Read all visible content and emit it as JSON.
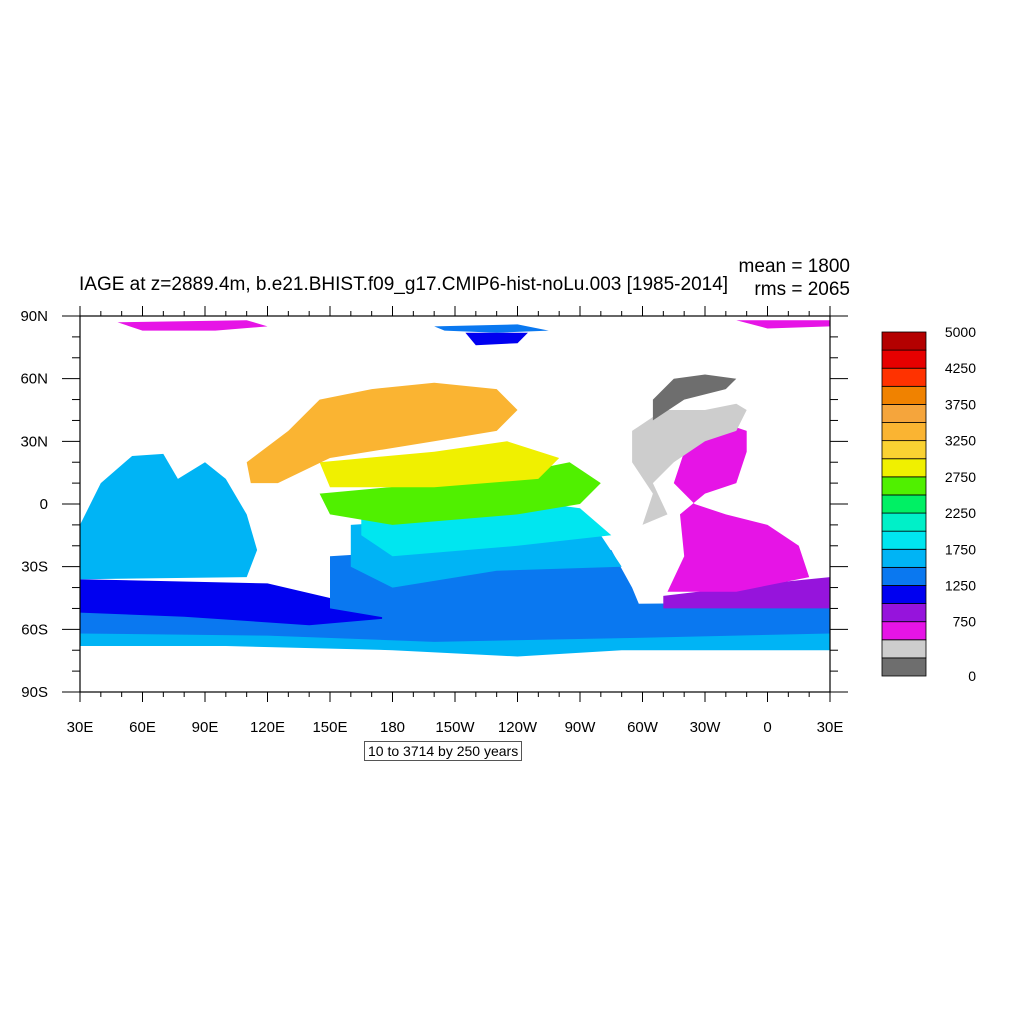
{
  "title": "IAGE at z=2889.4m, b.e21.BHIST.f09_g17.CMIP6-hist-noLu.003 [1985-2014]",
  "stats": {
    "mean": "mean = 1800",
    "rms": "rms = 2065"
  },
  "info_box": "10 to 3714 by 250 years",
  "chart_data": {
    "type": "heatmap",
    "projection": "cylindrical-equidistant",
    "variable": "IAGE",
    "lon_range": [
      30,
      390
    ],
    "lat_range": [
      -90,
      90
    ],
    "x_ticks": [
      {
        "value": 30,
        "label": "30E"
      },
      {
        "value": 60,
        "label": "60E"
      },
      {
        "value": 90,
        "label": "90E"
      },
      {
        "value": 120,
        "label": "120E"
      },
      {
        "value": 150,
        "label": "150E"
      },
      {
        "value": 180,
        "label": "180"
      },
      {
        "value": 210,
        "label": "150W"
      },
      {
        "value": 240,
        "label": "120W"
      },
      {
        "value": 270,
        "label": "90W"
      },
      {
        "value": 300,
        "label": "60W"
      },
      {
        "value": 330,
        "label": "30W"
      },
      {
        "value": 360,
        "label": "0"
      },
      {
        "value": 390,
        "label": "30E"
      }
    ],
    "y_ticks": [
      {
        "value": 90,
        "label": "90N"
      },
      {
        "value": 60,
        "label": "60N"
      },
      {
        "value": 30,
        "label": "30N"
      },
      {
        "value": 0,
        "label": "0"
      },
      {
        "value": -30,
        "label": "30S"
      },
      {
        "value": -60,
        "label": "60S"
      },
      {
        "value": -90,
        "label": "90S"
      }
    ],
    "colorbar": {
      "colors": [
        "#6e6e6e",
        "#cdcdcd",
        "#e614e6",
        "#9614dc",
        "#0000f0",
        "#0a78f0",
        "#00b4f5",
        "#00e6f0",
        "#00f0c8",
        "#00f064",
        "#50f000",
        "#f0f000",
        "#fad232",
        "#fab432",
        "#f5a53c",
        "#f08200",
        "#ff3200",
        "#e60000",
        "#b40000"
      ],
      "labels": [
        {
          "index": 0,
          "text": "0"
        },
        {
          "index": 3,
          "text": "750"
        },
        {
          "index": 5,
          "text": "1250"
        },
        {
          "index": 7,
          "text": "1750"
        },
        {
          "index": 9,
          "text": "2250"
        },
        {
          "index": 11,
          "text": "2750"
        },
        {
          "index": 13,
          "text": "3250"
        },
        {
          "index": 15,
          "text": "3750"
        },
        {
          "index": 17,
          "text": "4250"
        },
        {
          "index": 19,
          "text": "5000"
        }
      ]
    },
    "regions": [
      {
        "name": "arctic-siberia",
        "color": "#e614e6",
        "points": [
          [
            48,
            87
          ],
          [
            110,
            88
          ],
          [
            120,
            85
          ],
          [
            95,
            83
          ],
          [
            60,
            83
          ]
        ]
      },
      {
        "name": "arctic-atlantic",
        "color": "#e614e6",
        "points": [
          [
            345,
            88
          ],
          [
            390,
            88
          ],
          [
            390,
            85
          ],
          [
            360,
            84
          ]
        ]
      },
      {
        "name": "arctic-canada",
        "color": "#0a78f0",
        "points": [
          [
            200,
            85
          ],
          [
            240,
            86
          ],
          [
            255,
            83
          ],
          [
            230,
            82
          ],
          [
            205,
            83
          ]
        ]
      },
      {
        "name": "arctic-basin",
        "color": "#0000f0",
        "points": [
          [
            215,
            82
          ],
          [
            245,
            82
          ],
          [
            240,
            77
          ],
          [
            220,
            76
          ]
        ]
      },
      {
        "name": "southern-ocean-band",
        "color": "#00b4f5",
        "points": [
          [
            30,
            -52
          ],
          [
            390,
            -52
          ],
          [
            390,
            -70
          ],
          [
            290,
            -70
          ],
          [
            240,
            -73
          ],
          [
            180,
            -70
          ],
          [
            100,
            -68
          ],
          [
            30,
            -68
          ]
        ]
      },
      {
        "name": "southern-ocean-deep",
        "color": "#0a78f0",
        "points": [
          [
            30,
            -50
          ],
          [
            390,
            -47
          ],
          [
            390,
            -62
          ],
          [
            300,
            -64
          ],
          [
            200,
            -66
          ],
          [
            120,
            -63
          ],
          [
            30,
            -62
          ]
        ]
      },
      {
        "name": "southern-ocean-core",
        "color": "#0000f0",
        "points": [
          [
            30,
            -36
          ],
          [
            120,
            -38
          ],
          [
            150,
            -45
          ],
          [
            175,
            -48
          ],
          [
            175,
            -55
          ],
          [
            140,
            -58
          ],
          [
            80,
            -54
          ],
          [
            30,
            -52
          ]
        ]
      },
      {
        "name": "indian-ocean",
        "color": "#00b4f5",
        "points": [
          [
            55,
            23
          ],
          [
            70,
            24
          ],
          [
            77,
            12
          ],
          [
            90,
            20
          ],
          [
            100,
            12
          ],
          [
            110,
            -5
          ],
          [
            115,
            -22
          ],
          [
            110,
            -35
          ],
          [
            30,
            -36
          ],
          [
            30,
            -10
          ],
          [
            40,
            10
          ]
        ]
      },
      {
        "name": "south-atlantic-southern-band",
        "color": "#9614dc",
        "points": [
          [
            310,
            -44
          ],
          [
            360,
            -38
          ],
          [
            390,
            -35
          ],
          [
            390,
            -50
          ],
          [
            310,
            -50
          ]
        ]
      },
      {
        "name": "south-atlantic",
        "color": "#e614e6",
        "points": [
          [
            318,
            -5
          ],
          [
            330,
            5
          ],
          [
            345,
            10
          ],
          [
            350,
            25
          ],
          [
            350,
            35
          ],
          [
            335,
            40
          ],
          [
            320,
            25
          ],
          [
            315,
            10
          ],
          [
            325,
            0
          ],
          [
            340,
            -5
          ],
          [
            360,
            -10
          ],
          [
            375,
            -20
          ],
          [
            380,
            -35
          ],
          [
            345,
            -42
          ],
          [
            312,
            -42
          ],
          [
            320,
            -25
          ]
        ]
      },
      {
        "name": "north-atlantic-shelf",
        "color": "#cdcdcd",
        "points": [
          [
            295,
            35
          ],
          [
            310,
            45
          ],
          [
            330,
            45
          ],
          [
            345,
            48
          ],
          [
            350,
            45
          ],
          [
            345,
            35
          ],
          [
            330,
            30
          ],
          [
            315,
            20
          ],
          [
            305,
            10
          ],
          [
            312,
            -5
          ],
          [
            300,
            -10
          ],
          [
            305,
            5
          ],
          [
            295,
            20
          ]
        ]
      },
      {
        "name": "north-atlantic-young",
        "color": "#6e6e6e",
        "points": [
          [
            305,
            40
          ],
          [
            320,
            50
          ],
          [
            340,
            55
          ],
          [
            345,
            60
          ],
          [
            330,
            62
          ],
          [
            315,
            60
          ],
          [
            305,
            50
          ]
        ]
      },
      {
        "name": "pacific-south",
        "color": "#0a78f0",
        "points": [
          [
            150,
            -25
          ],
          [
            230,
            -20
          ],
          [
            285,
            -22
          ],
          [
            295,
            -40
          ],
          [
            300,
            -52
          ],
          [
            250,
            -52
          ],
          [
            180,
            -55
          ],
          [
            150,
            -50
          ]
        ]
      },
      {
        "name": "pacific-mid-south",
        "color": "#00b4f5",
        "points": [
          [
            160,
            -10
          ],
          [
            240,
            -5
          ],
          [
            280,
            -15
          ],
          [
            290,
            -30
          ],
          [
            230,
            -32
          ],
          [
            180,
            -40
          ],
          [
            160,
            -30
          ]
        ]
      },
      {
        "name": "pacific-equatorial-south",
        "color": "#00e6f0",
        "points": [
          [
            165,
            0
          ],
          [
            240,
            2
          ],
          [
            270,
            -2
          ],
          [
            285,
            -15
          ],
          [
            240,
            -20
          ],
          [
            180,
            -25
          ],
          [
            165,
            -15
          ]
        ]
      },
      {
        "name": "pacific-equatorial",
        "color": "#50f000",
        "points": [
          [
            145,
            5
          ],
          [
            200,
            10
          ],
          [
            240,
            15
          ],
          [
            265,
            20
          ],
          [
            280,
            10
          ],
          [
            270,
            0
          ],
          [
            240,
            -5
          ],
          [
            180,
            -10
          ],
          [
            150,
            -5
          ]
        ]
      },
      {
        "name": "pacific-north-tropical",
        "color": "#f0f000",
        "points": [
          [
            145,
            20
          ],
          [
            200,
            25
          ],
          [
            235,
            30
          ],
          [
            260,
            22
          ],
          [
            250,
            12
          ],
          [
            200,
            8
          ],
          [
            150,
            8
          ]
        ]
      },
      {
        "name": "pacific-north",
        "color": "#fab432",
        "points": [
          [
            110,
            20
          ],
          [
            130,
            35
          ],
          [
            145,
            50
          ],
          [
            170,
            55
          ],
          [
            200,
            58
          ],
          [
            230,
            55
          ],
          [
            240,
            45
          ],
          [
            230,
            35
          ],
          [
            200,
            30
          ],
          [
            150,
            22
          ],
          [
            125,
            10
          ],
          [
            112,
            10
          ]
        ]
      }
    ]
  }
}
